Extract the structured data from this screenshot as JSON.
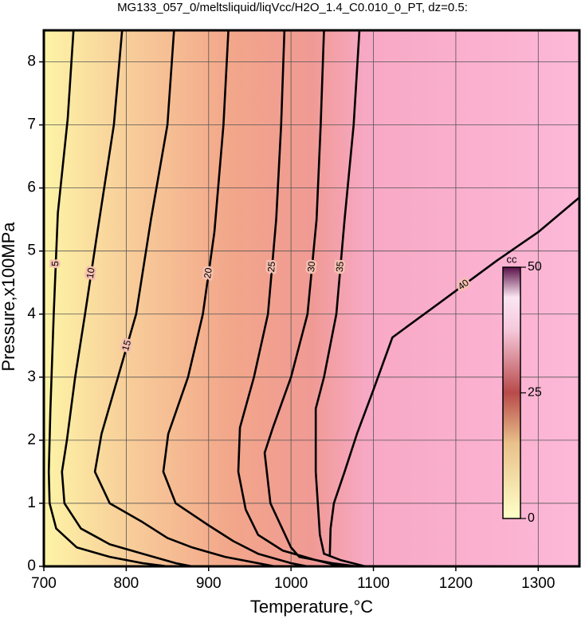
{
  "chart_data": {
    "type": "contour",
    "title": "MG133_057_0/meltsliquid/liqVcc/H2O_1.4_C0.010_0_PT, dz=0.5:",
    "x_label": "Temperature,°C",
    "y_label": "Pressure,x100MPa",
    "xlim": [
      700,
      1350
    ],
    "ylim": [
      0,
      8.5
    ],
    "xticks": [
      700,
      800,
      900,
      1000,
      1100,
      1200,
      1300
    ],
    "yticks": [
      0,
      1,
      2,
      3,
      4,
      5,
      6,
      7,
      8
    ],
    "grid": true,
    "contours": [
      {
        "level": 5,
        "x": [
          736,
          729,
          717,
          712,
          708,
          706,
          707,
          715,
          740,
          780,
          820,
          850
        ],
        "y": [
          8.5,
          7.1,
          5.6,
          4,
          2.5,
          1.5,
          1,
          0.6,
          0.3,
          0.15,
          0.05,
          0
        ]
      },
      {
        "level": 10,
        "x": [
          795,
          785,
          765,
          750,
          738,
          728,
          722,
          725,
          745,
          780,
          820,
          860,
          880
        ],
        "y": [
          8.5,
          7,
          5.3,
          4,
          3,
          2,
          1.5,
          1,
          0.6,
          0.35,
          0.2,
          0.05,
          0
        ]
      },
      {
        "level": 15,
        "x": [
          858,
          850,
          830,
          812,
          790,
          770,
          762,
          780,
          820,
          850,
          880,
          920,
          960,
          980
        ],
        "y": [
          8.5,
          7,
          5.5,
          4,
          3,
          2.1,
          1.5,
          1,
          0.7,
          0.45,
          0.3,
          0.15,
          0.05,
          0
        ]
      },
      {
        "level": 20,
        "x": [
          924,
          918,
          907,
          893,
          875,
          851,
          845,
          860,
          900,
          930,
          960,
          1000,
          1020
        ],
        "y": [
          8.5,
          7,
          5.3,
          4,
          3,
          2.1,
          1.5,
          1,
          0.65,
          0.4,
          0.2,
          0.05,
          0
        ]
      },
      {
        "level": 25,
        "x": [
          992,
          988,
          982,
          972,
          955,
          938,
          936,
          945,
          960,
          990,
          1030,
          1060
        ],
        "y": [
          8.5,
          7,
          5.5,
          4,
          3,
          2.2,
          1.5,
          0.9,
          0.5,
          0.25,
          0.1,
          0
        ]
      },
      {
        "level": 30,
        "x": [
          1040,
          1036,
          1031,
          1020,
          1000,
          978,
          968,
          975,
          1000,
          1010,
          1050,
          1080
        ],
        "y": [
          8.5,
          7,
          5.5,
          4,
          3,
          2.2,
          1.8,
          1,
          0.3,
          0.15,
          0.05,
          0
        ]
      },
      {
        "level": 35,
        "x": [
          1083,
          1076,
          1065,
          1055,
          1040,
          1030,
          1030,
          1035,
          1040,
          1060,
          1090
        ],
        "y": [
          8.5,
          7,
          5.5,
          4,
          3,
          2.5,
          1.5,
          0.5,
          0.2,
          0.1,
          0
        ]
      },
      {
        "level": 40,
        "x": [
          1350,
          1300,
          1250,
          1169,
          1123,
          1100,
          1080,
          1065,
          1052,
          1048,
          1047
        ],
        "y": [
          5.85,
          5.3,
          4.85,
          4.07,
          3.63,
          2.8,
          2.1,
          1.5,
          1,
          0.6,
          0.15
        ]
      }
    ],
    "colorbar": {
      "label": "cc",
      "lim": [
        0,
        50
      ],
      "ticks": [
        0,
        25,
        50
      ]
    }
  }
}
